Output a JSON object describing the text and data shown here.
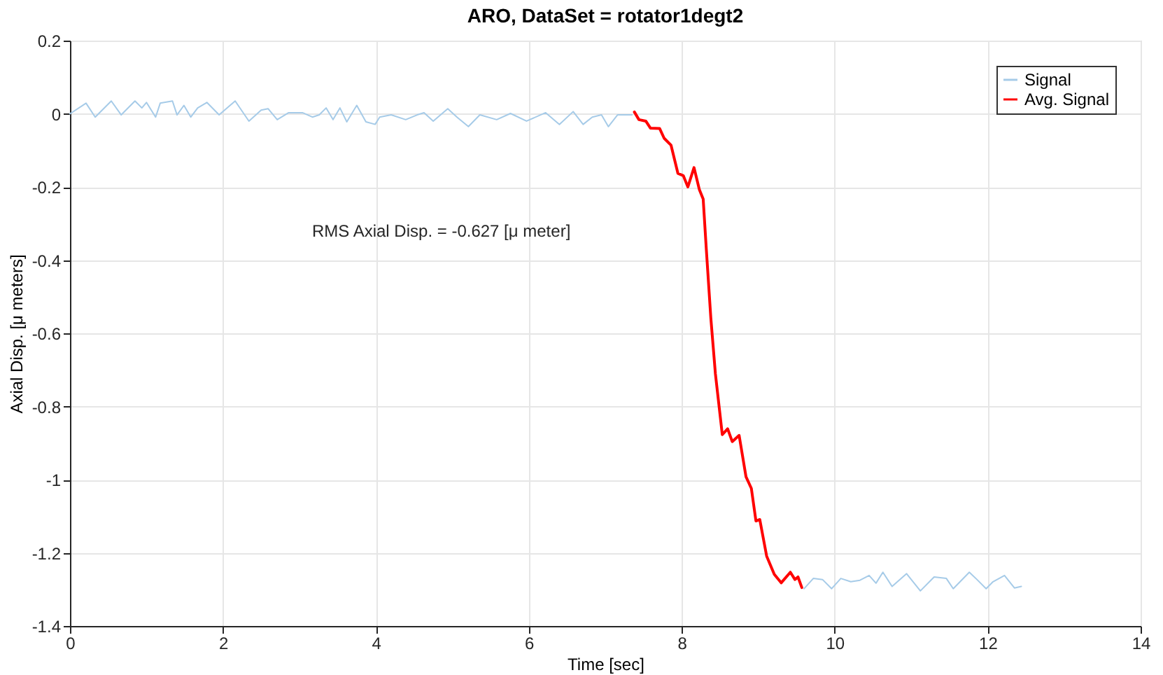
{
  "chart_data": {
    "type": "line",
    "title": "ARO, DataSet = rotator1degt2",
    "xlabel": "Time [sec]",
    "ylabel": "Axial Disp. [μ meters]",
    "annotations": [
      "RMS Axial Disp. = -0.627 [μ meter]"
    ],
    "xlim": [
      0,
      14
    ],
    "xticks": [
      0,
      2,
      4,
      6,
      8,
      10,
      12,
      14
    ],
    "ylim": [
      -1.4,
      0.2
    ],
    "yticks": [
      -1.4,
      -1.2,
      -1,
      -0.8,
      -0.6,
      -0.4,
      -0.2,
      0,
      0.2
    ],
    "grid": true,
    "legend": "top right",
    "line_style": "solid",
    "marker": "none",
    "series": [
      {
        "name": "Signal",
        "color": "#a6cbe8",
        "x": [
          0,
          0.21,
          0.33,
          0.54,
          0.67,
          0.85,
          0.94,
          1.0,
          1.12,
          1.18,
          1.34,
          1.4,
          1.49,
          1.58,
          1.67,
          1.79,
          1.95,
          2.16,
          2.34,
          2.5,
          2.59,
          2.71,
          2.86,
          3.04,
          3.17,
          3.26,
          3.35,
          3.44,
          3.53,
          3.62,
          3.75,
          3.87,
          3.99,
          4.05,
          4.2,
          4.39,
          4.54,
          4.63,
          4.75,
          4.94,
          5.06,
          5.21,
          5.36,
          5.58,
          5.76,
          5.97,
          6.22,
          6.4,
          6.58,
          6.71,
          6.83,
          6.95,
          7.04,
          7.16,
          7.35,
          null,
          9.6,
          9.72,
          9.84,
          9.96,
          10.08,
          10.21,
          10.33,
          10.45,
          10.54,
          10.63,
          10.75,
          10.94,
          11.12,
          11.3,
          11.46,
          11.55,
          11.76,
          11.86,
          11.98,
          12.07,
          12.22,
          12.35,
          12.44
        ],
        "values": [
          0,
          0.029,
          -0.009,
          0.035,
          -0.003,
          0.035,
          0.016,
          0.031,
          -0.009,
          0.029,
          0.035,
          -0.003,
          0.023,
          -0.009,
          0.016,
          0.031,
          -0.003,
          0.035,
          -0.02,
          0.01,
          0.014,
          -0.016,
          0.003,
          0.003,
          -0.009,
          -0.003,
          0.016,
          -0.016,
          0.016,
          -0.022,
          0.023,
          -0.022,
          -0.029,
          -0.009,
          -0.003,
          -0.016,
          -0.003,
          0.003,
          -0.02,
          0.014,
          -0.009,
          -0.035,
          -0.003,
          -0.016,
          0.001,
          -0.02,
          0.003,
          -0.029,
          0.006,
          -0.029,
          -0.009,
          -0.003,
          -0.035,
          -0.003,
          -0.003,
          null,
          -1.298,
          -1.27,
          -1.273,
          -1.298,
          -1.27,
          -1.279,
          -1.275,
          -1.262,
          -1.283,
          -1.253,
          -1.292,
          -1.257,
          -1.304,
          -1.266,
          -1.27,
          -1.298,
          -1.253,
          -1.273,
          -1.298,
          -1.279,
          -1.262,
          -1.296,
          -1.292
        ]
      },
      {
        "name": "Avg. Signal",
        "color": "#ff0000",
        "x": [
          7.38,
          7.44,
          7.53,
          7.59,
          7.71,
          7.77,
          7.86,
          7.95,
          8.02,
          8.08,
          8.16,
          8.23,
          8.28,
          8.32,
          8.38,
          8.44,
          8.53,
          8.6,
          8.66,
          8.75,
          8.84,
          8.91,
          8.97,
          9.02,
          9.11,
          9.21,
          9.3,
          9.42,
          9.48,
          9.52,
          9.57
        ],
        "values": [
          0.005,
          -0.016,
          -0.02,
          -0.039,
          -0.04,
          -0.067,
          -0.086,
          -0.163,
          -0.169,
          -0.2,
          -0.147,
          -0.207,
          -0.233,
          -0.367,
          -0.558,
          -0.711,
          -0.877,
          -0.861,
          -0.896,
          -0.879,
          -0.992,
          -1.024,
          -1.113,
          -1.109,
          -1.209,
          -1.259,
          -1.282,
          -1.253,
          -1.273,
          -1.266,
          -1.295
        ]
      }
    ]
  }
}
